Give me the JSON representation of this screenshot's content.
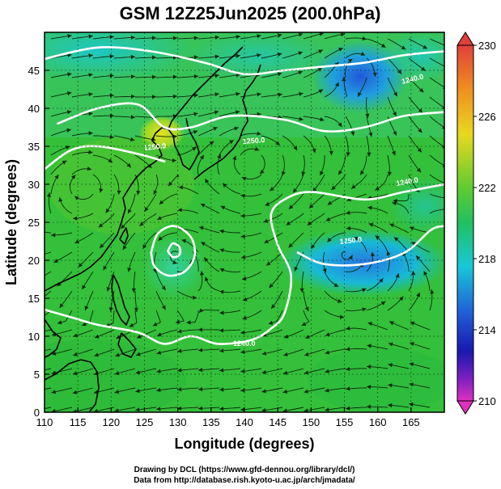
{
  "title": "GSM 12Z25Jun2025 (200.0hPa)",
  "xlabel": "Longitude (degrees)",
  "ylabel": "Latitude  (degrees)",
  "credit_line1": "Drawing by DCL (https://www.gfd-dennou.org/library/dcl/)",
  "credit_line2": "Data from http://database.rish.kyoto-u.ac.jp/arch/jmadata/",
  "contour_labels": [
    "1240.0",
    "1250.0",
    "1240.0",
    "1250.0",
    "1240.0",
    "1250.0"
  ],
  "colors": {
    "cb_top": "#e0403a",
    "cb_orange": "#f0a020",
    "cb_yellow": "#e8e020",
    "cb_green": "#28c040",
    "cb_cyan": "#18c8d8",
    "cb_blue": "#2060d8",
    "cb_darkblue": "#1818b0",
    "cb_bottom": "#e030c0"
  },
  "chart_data": {
    "type": "heatmap",
    "title": "GSM 12Z25Jun2025 (200.0hPa)",
    "xlabel": "Longitude (degrees)",
    "ylabel": "Latitude  (degrees)",
    "xlim": [
      110,
      170
    ],
    "ylim": [
      0,
      50
    ],
    "xticks": [
      110,
      115,
      120,
      125,
      130,
      135,
      140,
      145,
      150,
      155,
      160,
      165
    ],
    "yticks": [
      0,
      5,
      10,
      15,
      20,
      25,
      30,
      35,
      40,
      45
    ],
    "colorbar": {
      "min": 210,
      "max": 230,
      "ticks": [
        210,
        214,
        218,
        222,
        226,
        230
      ]
    },
    "contour_labels": [
      "1240.0",
      "1250.0",
      "1240.0",
      "1250.0",
      "1240.0",
      "1250.0"
    ],
    "contours": [
      {
        "name": "c1",
        "label": "1240.0",
        "points": [
          [
            110,
            46.5
          ],
          [
            118,
            48
          ],
          [
            126,
            47.5
          ],
          [
            134,
            46
          ],
          [
            140,
            44.5
          ],
          [
            146,
            45
          ],
          [
            152,
            45.5
          ],
          [
            158,
            46
          ],
          [
            164,
            47
          ],
          [
            170,
            47.5
          ]
        ]
      },
      {
        "name": "c2",
        "label": "1250.0",
        "points": [
          [
            112,
            38
          ],
          [
            118,
            40
          ],
          [
            124,
            40.5
          ],
          [
            128,
            37.5
          ],
          [
            132,
            37.5
          ],
          [
            138,
            39
          ],
          [
            146,
            38.5
          ],
          [
            152,
            37
          ],
          [
            158,
            37.5
          ],
          [
            164,
            39
          ],
          [
            170,
            39.5
          ]
        ]
      },
      {
        "name": "c3",
        "label": "1250.0",
        "points": [
          [
            110,
            32
          ],
          [
            114,
            34.5
          ],
          [
            118,
            35
          ],
          [
            124,
            34
          ],
          [
            128,
            33
          ]
        ]
      },
      {
        "name": "c4",
        "label": "1240.0",
        "points": [
          [
            110,
            13.5
          ],
          [
            114,
            12.5
          ],
          [
            118,
            11.5
          ],
          [
            124,
            10.5
          ],
          [
            128,
            9
          ],
          [
            132,
            10
          ],
          [
            136,
            9
          ],
          [
            141,
            9.5
          ],
          [
            144,
            11
          ],
          [
            146,
            13
          ],
          [
            147,
            18
          ],
          [
            145,
            22
          ],
          [
            144,
            26
          ],
          [
            146,
            28
          ],
          [
            150,
            29
          ],
          [
            158,
            28
          ],
          [
            164,
            29
          ],
          [
            170,
            30
          ]
        ]
      },
      {
        "name": "c5",
        "label": "1250.0",
        "points": [
          [
            148,
            21
          ],
          [
            152,
            19.5
          ],
          [
            158,
            19.5
          ],
          [
            164,
            21
          ],
          [
            168,
            24
          ],
          [
            170,
            24.5
          ]
        ]
      },
      {
        "name": "c6",
        "label": "",
        "points": [
          [
            126,
            21
          ],
          [
            127,
            23.5
          ],
          [
            129.5,
            24.5
          ],
          [
            132,
            23
          ],
          [
            132.5,
            20.5
          ],
          [
            131,
            18.5
          ],
          [
            128.5,
            18
          ],
          [
            126.5,
            19.2
          ],
          [
            126,
            21
          ]
        ]
      },
      {
        "name": "c7",
        "label": "",
        "points": [
          [
            128.5,
            21.2
          ],
          [
            129.2,
            22.2
          ],
          [
            130.2,
            21.8
          ],
          [
            130.3,
            20.8
          ],
          [
            129.3,
            20.4
          ],
          [
            128.5,
            21.2
          ]
        ]
      }
    ],
    "vortex_centers": [
      [
        116,
        30
      ],
      [
        129.5,
        21
      ],
      [
        141,
        33
      ],
      [
        155,
        21
      ],
      [
        157,
        46
      ]
    ]
  }
}
